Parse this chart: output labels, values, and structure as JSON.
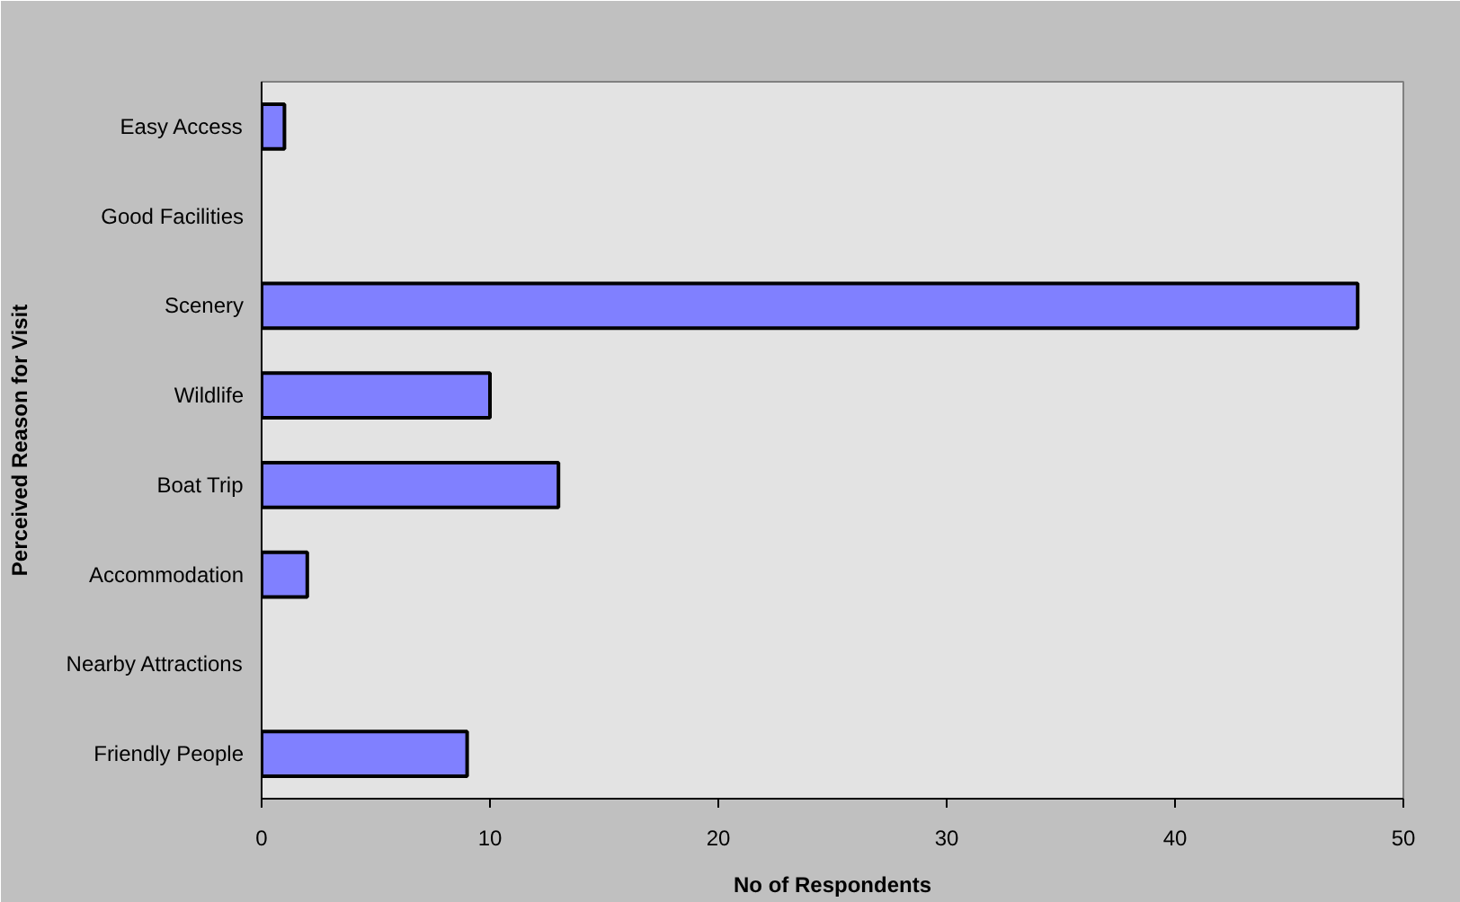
{
  "chart_data": {
    "type": "bar",
    "orientation": "horizontal",
    "categories": [
      "Easy Access",
      "Good Facilities",
      "Scenery",
      "Wildlife",
      "Boat Trip",
      "Accommodation",
      "Nearby Attractions",
      "Friendly People"
    ],
    "values": [
      1,
      0,
      48,
      10,
      13,
      2,
      0,
      9
    ],
    "color": "#8080ff",
    "xlim": [
      0,
      50
    ],
    "xticks": [
      0,
      10,
      20,
      30,
      40,
      50
    ],
    "xlabel": "No of Respondents",
    "ylabel": "Perceived Reason for Visit",
    "grid": false
  }
}
